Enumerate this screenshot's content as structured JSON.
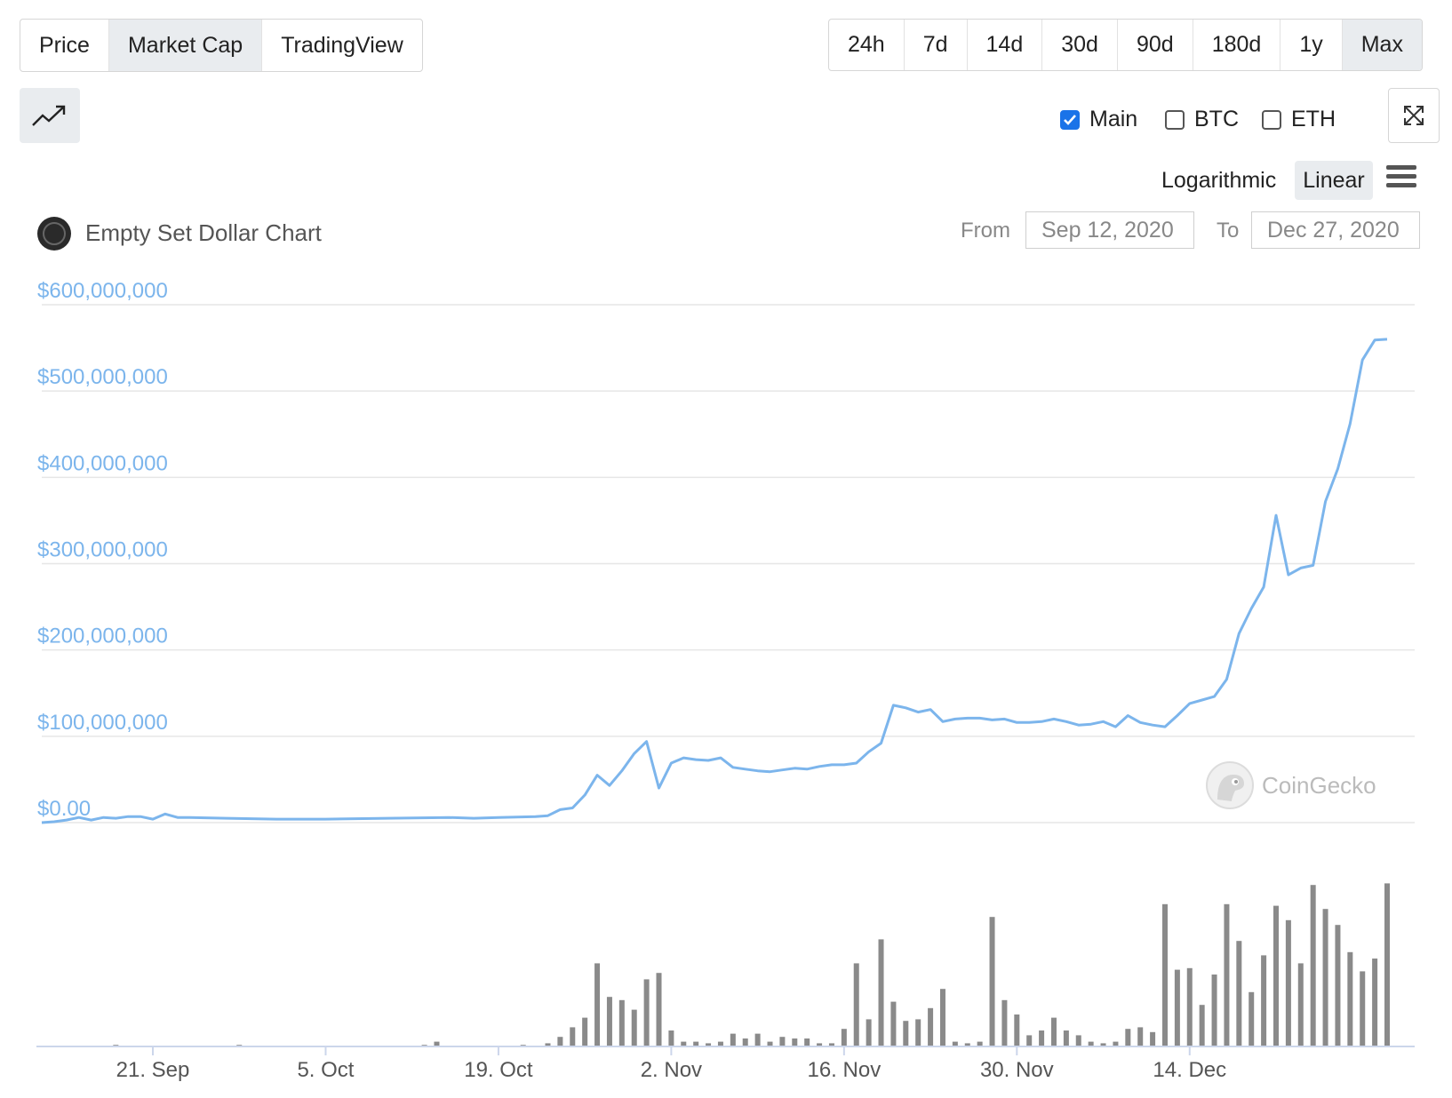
{
  "view_tabs": {
    "items": [
      "Price",
      "Market Cap",
      "TradingView"
    ],
    "active": "Market Cap"
  },
  "range_tabs": {
    "items": [
      "24h",
      "7d",
      "14d",
      "30d",
      "90d",
      "180d",
      "1y",
      "Max"
    ],
    "active": "Max"
  },
  "toggles": {
    "main": "Main",
    "btc": "BTC",
    "eth": "ETH",
    "main_checked": true,
    "btc_checked": false,
    "eth_checked": false
  },
  "scale": {
    "logarithmic": "Logarithmic",
    "linear": "Linear",
    "active": "Linear"
  },
  "header": {
    "title": "Empty Set Dollar Chart",
    "from_label": "From",
    "from_value": "Sep 12, 2020",
    "to_label": "To",
    "to_value": "Dec 27, 2020"
  },
  "watermark": "CoinGecko",
  "icons": {
    "chart_type": "trending-up-icon",
    "fullscreen": "fullscreen-icon",
    "menu": "hamburger-menu-icon",
    "coin_logo": "empty-set-dollar-logo-icon",
    "watermark": "coingecko-gecko-icon"
  },
  "colors": {
    "line": "#7cb5ec",
    "volume": "#8a8a8a",
    "axis_label": "#7cb5ec",
    "grid": "#e6e6e6",
    "active_tab": "#e9ecef",
    "checkbox": "#1a73e8"
  },
  "chart_data": {
    "type": "line",
    "title": "Empty Set Dollar Chart",
    "y_tick_labels": [
      "$0.00",
      "$100,000,000",
      "$200,000,000",
      "$300,000,000",
      "$400,000,000",
      "$500,000,000",
      "$600,000,000"
    ],
    "y_ticks": [
      0,
      100000000,
      200000000,
      300000000,
      400000000,
      500000000,
      600000000
    ],
    "ylim": [
      0,
      600000000
    ],
    "x_tick_labels": [
      "21. Sep",
      "5. Oct",
      "19. Oct",
      "2. Nov",
      "16. Nov",
      "30. Nov",
      "14. Dec"
    ],
    "x_ticks": [
      "2020-09-21",
      "2020-10-05",
      "2020-10-19",
      "2020-11-02",
      "2020-11-16",
      "2020-11-30",
      "2020-12-14"
    ],
    "xlim": [
      "2020-09-12",
      "2020-12-27"
    ],
    "grid": true,
    "legend": "none",
    "series": [
      {
        "values": [
          [
            "2020-09-12",
            0
          ],
          [
            "2020-09-13",
            1000000
          ],
          [
            "2020-09-14",
            3000000
          ],
          [
            "2020-09-15",
            6000000
          ],
          [
            "2020-09-16",
            3000000
          ],
          [
            "2020-09-17",
            6000000
          ],
          [
            "2020-09-18",
            5000000
          ],
          [
            "2020-09-19",
            7000000
          ],
          [
            "2020-09-20",
            7000000
          ],
          [
            "2020-09-21",
            4000000
          ],
          [
            "2020-09-22",
            10000000
          ],
          [
            "2020-09-23",
            6000000
          ],
          [
            "2020-09-24",
            6000000
          ],
          [
            "2020-09-27",
            5000000
          ],
          [
            "2020-10-01",
            4000000
          ],
          [
            "2020-10-05",
            4000000
          ],
          [
            "2020-10-10",
            5000000
          ],
          [
            "2020-10-15",
            6000000
          ],
          [
            "2020-10-17",
            5000000
          ],
          [
            "2020-10-19",
            6000000
          ],
          [
            "2020-10-22",
            7000000
          ],
          [
            "2020-10-23",
            8000000
          ],
          [
            "2020-10-24",
            15000000
          ],
          [
            "2020-10-25",
            17000000
          ],
          [
            "2020-10-26",
            32000000
          ],
          [
            "2020-10-27",
            55000000
          ],
          [
            "2020-10-28",
            43000000
          ],
          [
            "2020-10-29",
            60000000
          ],
          [
            "2020-10-30",
            80000000
          ],
          [
            "2020-10-31",
            94000000
          ],
          [
            "2020-11-01",
            40000000
          ],
          [
            "2020-11-02",
            69000000
          ],
          [
            "2020-11-03",
            75000000
          ],
          [
            "2020-11-04",
            73000000
          ],
          [
            "2020-11-05",
            72000000
          ],
          [
            "2020-11-06",
            75000000
          ],
          [
            "2020-11-07",
            64000000
          ],
          [
            "2020-11-08",
            62000000
          ],
          [
            "2020-11-09",
            60000000
          ],
          [
            "2020-11-10",
            59000000
          ],
          [
            "2020-11-11",
            61000000
          ],
          [
            "2020-11-12",
            63000000
          ],
          [
            "2020-11-13",
            62000000
          ],
          [
            "2020-11-14",
            65000000
          ],
          [
            "2020-11-15",
            67000000
          ],
          [
            "2020-11-16",
            67000000
          ],
          [
            "2020-11-17",
            69000000
          ],
          [
            "2020-11-18",
            82000000
          ],
          [
            "2020-11-19",
            92000000
          ],
          [
            "2020-11-20",
            136000000
          ],
          [
            "2020-11-21",
            133000000
          ],
          [
            "2020-11-22",
            128000000
          ],
          [
            "2020-11-23",
            131000000
          ],
          [
            "2020-11-24",
            117000000
          ],
          [
            "2020-11-25",
            120000000
          ],
          [
            "2020-11-26",
            121000000
          ],
          [
            "2020-11-27",
            121000000
          ],
          [
            "2020-11-28",
            119000000
          ],
          [
            "2020-11-29",
            120000000
          ],
          [
            "2020-11-30",
            116000000
          ],
          [
            "2020-12-01",
            116000000
          ],
          [
            "2020-12-02",
            117000000
          ],
          [
            "2020-12-03",
            120000000
          ],
          [
            "2020-12-04",
            117000000
          ],
          [
            "2020-12-05",
            113000000
          ],
          [
            "2020-12-06",
            114000000
          ],
          [
            "2020-12-07",
            117000000
          ],
          [
            "2020-12-08",
            111000000
          ],
          [
            "2020-12-09",
            124000000
          ],
          [
            "2020-12-10",
            116000000
          ],
          [
            "2020-12-11",
            113000000
          ],
          [
            "2020-12-12",
            111000000
          ],
          [
            "2020-12-13",
            124000000
          ],
          [
            "2020-12-14",
            138000000
          ],
          [
            "2020-12-15",
            142000000
          ],
          [
            "2020-12-16",
            146000000
          ],
          [
            "2020-12-17",
            166000000
          ],
          [
            "2020-12-18",
            219000000
          ],
          [
            "2020-12-19",
            248000000
          ],
          [
            "2020-12-20",
            273000000
          ],
          [
            "2020-12-21",
            356000000
          ],
          [
            "2020-12-22",
            287000000
          ],
          [
            "2020-12-23",
            295000000
          ],
          [
            "2020-12-24",
            298000000
          ],
          [
            "2020-12-25",
            372000000
          ],
          [
            "2020-12-26",
            410000000
          ],
          [
            "2020-12-27",
            462000000
          ],
          [
            "2020-12-28",
            536000000
          ],
          [
            "2020-12-29",
            559000000
          ],
          [
            "2020-12-30",
            560000000
          ]
        ]
      }
    ],
    "volume": {
      "type": "bar",
      "y_range_relative": [
        0,
        100
      ],
      "values": [
        [
          "2020-09-18",
          1
        ],
        [
          "2020-09-28",
          1
        ],
        [
          "2020-10-13",
          1
        ],
        [
          "2020-10-14",
          3
        ],
        [
          "2020-10-21",
          1
        ],
        [
          "2020-10-23",
          2
        ],
        [
          "2020-10-24",
          6
        ],
        [
          "2020-10-25",
          12
        ],
        [
          "2020-10-26",
          18
        ],
        [
          "2020-10-27",
          52
        ],
        [
          "2020-10-28",
          31
        ],
        [
          "2020-10-29",
          29
        ],
        [
          "2020-10-30",
          23
        ],
        [
          "2020-10-31",
          42
        ],
        [
          "2020-11-01",
          46
        ],
        [
          "2020-11-02",
          10
        ],
        [
          "2020-11-03",
          3
        ],
        [
          "2020-11-04",
          3
        ],
        [
          "2020-11-05",
          2
        ],
        [
          "2020-11-06",
          3
        ],
        [
          "2020-11-07",
          8
        ],
        [
          "2020-11-08",
          5
        ],
        [
          "2020-11-09",
          8
        ],
        [
          "2020-11-10",
          3
        ],
        [
          "2020-11-11",
          6
        ],
        [
          "2020-11-12",
          5
        ],
        [
          "2020-11-13",
          5
        ],
        [
          "2020-11-14",
          2
        ],
        [
          "2020-11-15",
          2
        ],
        [
          "2020-11-16",
          11
        ],
        [
          "2020-11-17",
          52
        ],
        [
          "2020-11-18",
          17
        ],
        [
          "2020-11-19",
          67
        ],
        [
          "2020-11-20",
          28
        ],
        [
          "2020-11-21",
          16
        ],
        [
          "2020-11-22",
          17
        ],
        [
          "2020-11-23",
          24
        ],
        [
          "2020-11-24",
          36
        ],
        [
          "2020-11-25",
          3
        ],
        [
          "2020-11-26",
          2
        ],
        [
          "2020-11-27",
          3
        ],
        [
          "2020-11-28",
          81
        ],
        [
          "2020-11-29",
          29
        ],
        [
          "2020-11-30",
          20
        ],
        [
          "2020-12-01",
          7
        ],
        [
          "2020-12-02",
          10
        ],
        [
          "2020-12-03",
          18
        ],
        [
          "2020-12-04",
          10
        ],
        [
          "2020-12-05",
          7
        ],
        [
          "2020-12-06",
          3
        ],
        [
          "2020-12-07",
          2
        ],
        [
          "2020-12-08",
          3
        ],
        [
          "2020-12-09",
          11
        ],
        [
          "2020-12-10",
          12
        ],
        [
          "2020-12-11",
          9
        ],
        [
          "2020-12-12",
          89
        ],
        [
          "2020-12-13",
          48
        ],
        [
          "2020-12-14",
          49
        ],
        [
          "2020-12-15",
          26
        ],
        [
          "2020-12-16",
          45
        ],
        [
          "2020-12-17",
          89
        ],
        [
          "2020-12-18",
          66
        ],
        [
          "2020-12-19",
          34
        ],
        [
          "2020-12-20",
          57
        ],
        [
          "2020-12-21",
          88
        ],
        [
          "2020-12-22",
          79
        ],
        [
          "2020-12-23",
          52
        ],
        [
          "2020-12-24",
          101
        ],
        [
          "2020-12-25",
          86
        ],
        [
          "2020-12-26",
          76
        ],
        [
          "2020-12-27",
          59
        ],
        [
          "2020-12-28",
          47
        ],
        [
          "2020-12-29",
          55
        ],
        [
          "2020-12-30",
          102
        ]
      ]
    }
  }
}
